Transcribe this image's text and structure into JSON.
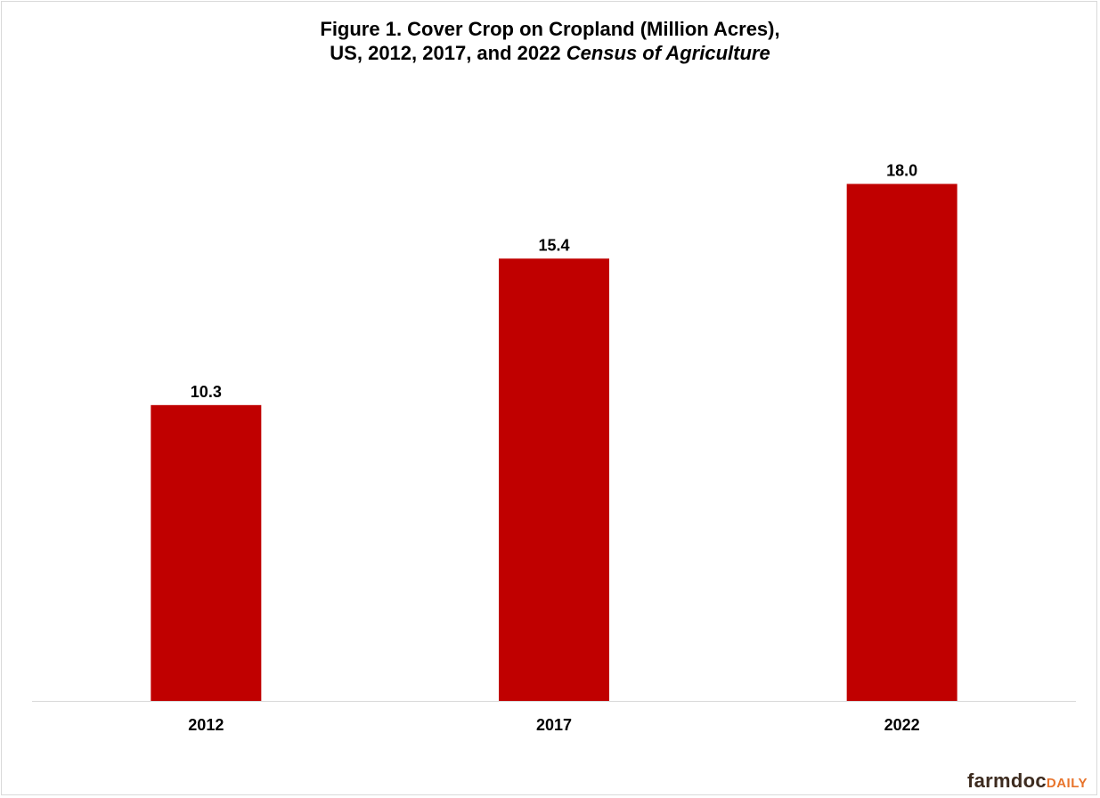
{
  "chart_data": {
    "type": "bar",
    "title_line1": "Figure 1.  Cover Crop on Cropland (Million Acres),",
    "title_line2_prefix": "US, 2012, 2017, and 2022 ",
    "title_line2_italic": "Census of Agriculture",
    "categories": [
      "2012",
      "2017",
      "2022"
    ],
    "values": [
      10.3,
      15.4,
      18.0
    ],
    "value_labels": [
      "10.3",
      "15.4",
      "18.0"
    ],
    "xlabel": "",
    "ylabel": "",
    "ylim": [
      0,
      20
    ],
    "grid": false,
    "bar_color": "#c00000"
  },
  "branding": {
    "logo_main": "farmdoc",
    "logo_accent": "DAILY",
    "logo_main_color": "#3d2b1f",
    "logo_accent_color": "#e8742c"
  }
}
